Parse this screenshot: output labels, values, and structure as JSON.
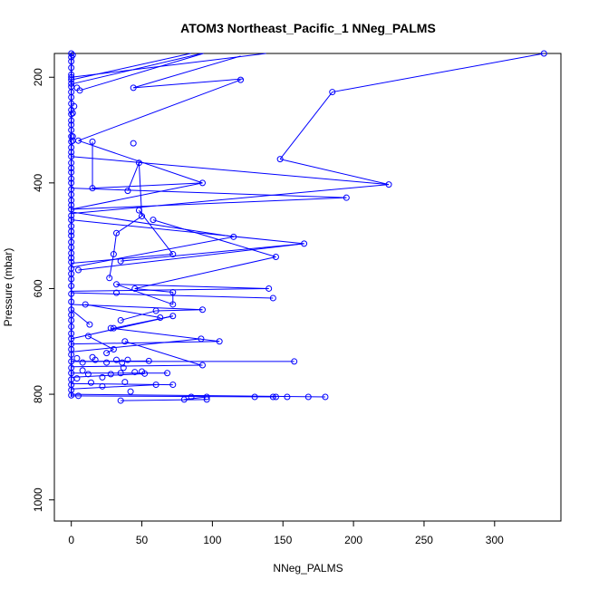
{
  "chart_data": {
    "type": "scatter",
    "title": "ATOM3 Northeast_Pacific_1 NNeg_PALMS",
    "xlabel": "NNeg_PALMS",
    "ylabel": "Pressure (mbar)",
    "xlim": [
      -12,
      347
    ],
    "ylim": [
      1040,
      155
    ],
    "y_reversed": true,
    "x_ticks": [
      0,
      50,
      100,
      150,
      200,
      250,
      300
    ],
    "y_ticks": [
      200,
      400,
      600,
      800,
      1000
    ],
    "grid": false,
    "color": "#0000ff",
    "points": [
      [
        0,
        155
      ],
      [
        1,
        158
      ],
      [
        0,
        162
      ],
      [
        0,
        170
      ],
      [
        0,
        182
      ],
      [
        0,
        195
      ],
      [
        0,
        200
      ],
      [
        0,
        205
      ],
      [
        0,
        212
      ],
      [
        0,
        218
      ],
      [
        0,
        228
      ],
      [
        0,
        238
      ],
      [
        0,
        250
      ],
      [
        0,
        262
      ],
      [
        0,
        270
      ],
      [
        0,
        282
      ],
      [
        0,
        290
      ],
      [
        0,
        300
      ],
      [
        0,
        312
      ],
      [
        0,
        322
      ],
      [
        0,
        333
      ],
      [
        0,
        342
      ],
      [
        0,
        350
      ],
      [
        0,
        362
      ],
      [
        0,
        372
      ],
      [
        0,
        380
      ],
      [
        0,
        392
      ],
      [
        0,
        400
      ],
      [
        0,
        412
      ],
      [
        0,
        422
      ],
      [
        0,
        433
      ],
      [
        0,
        442
      ],
      [
        0,
        450
      ],
      [
        0,
        462
      ],
      [
        0,
        470
      ],
      [
        0,
        482
      ],
      [
        0,
        492
      ],
      [
        0,
        500
      ],
      [
        0,
        512
      ],
      [
        0,
        522
      ],
      [
        0,
        533
      ],
      [
        0,
        542
      ],
      [
        0,
        550
      ],
      [
        0,
        562
      ],
      [
        0,
        572
      ],
      [
        0,
        582
      ],
      [
        0,
        595
      ],
      [
        0,
        610
      ],
      [
        0,
        625
      ],
      [
        0,
        640
      ],
      [
        0,
        650
      ],
      [
        0,
        660
      ],
      [
        0,
        672
      ],
      [
        0,
        685
      ],
      [
        0,
        695
      ],
      [
        0,
        705
      ],
      [
        0,
        715
      ],
      [
        0,
        725
      ],
      [
        0,
        738
      ],
      [
        0,
        750
      ],
      [
        0,
        760
      ],
      [
        0,
        772
      ],
      [
        0,
        782
      ],
      [
        0,
        792
      ],
      [
        0,
        802
      ],
      [
        6,
        225
      ],
      [
        4,
        220
      ],
      [
        5,
        320
      ],
      [
        1,
        312
      ],
      [
        1,
        320
      ],
      [
        2,
        255
      ],
      [
        1,
        268
      ],
      [
        150,
        110
      ],
      [
        180,
        95
      ],
      [
        230,
        125
      ],
      [
        335,
        155
      ],
      [
        120,
        205
      ],
      [
        185,
        228
      ],
      [
        148,
        355
      ],
      [
        225,
        403
      ],
      [
        195,
        428
      ],
      [
        44,
        220
      ],
      [
        44,
        325
      ],
      [
        15,
        322
      ],
      [
        15,
        410
      ],
      [
        48,
        362
      ],
      [
        40,
        415
      ],
      [
        93,
        400
      ],
      [
        48,
        452
      ],
      [
        50,
        463
      ],
      [
        58,
        470
      ],
      [
        115,
        502
      ],
      [
        165,
        515
      ],
      [
        72,
        535
      ],
      [
        145,
        540
      ],
      [
        32,
        495
      ],
      [
        30,
        535
      ],
      [
        35,
        548
      ],
      [
        27,
        580
      ],
      [
        5,
        565
      ],
      [
        32,
        592
      ],
      [
        140,
        600
      ],
      [
        45,
        600
      ],
      [
        72,
        607
      ],
      [
        143,
        618
      ],
      [
        32,
        608
      ],
      [
        72,
        630
      ],
      [
        10,
        630
      ],
      [
        93,
        640
      ],
      [
        60,
        642
      ],
      [
        72,
        652
      ],
      [
        63,
        655
      ],
      [
        35,
        660
      ],
      [
        13,
        668
      ],
      [
        28,
        675
      ],
      [
        30,
        675
      ],
      [
        105,
        700
      ],
      [
        92,
        695
      ],
      [
        38,
        700
      ],
      [
        12,
        690
      ],
      [
        30,
        715
      ],
      [
        25,
        722
      ],
      [
        15,
        730
      ],
      [
        4,
        732
      ],
      [
        8,
        740
      ],
      [
        17,
        735
      ],
      [
        25,
        740
      ],
      [
        40,
        735
      ],
      [
        158,
        738
      ],
      [
        93,
        745
      ],
      [
        55,
        737
      ],
      [
        32,
        735
      ],
      [
        36,
        740
      ],
      [
        37,
        750
      ],
      [
        45,
        758
      ],
      [
        50,
        757
      ],
      [
        68,
        760
      ],
      [
        52,
        761
      ],
      [
        35,
        760
      ],
      [
        28,
        762
      ],
      [
        22,
        768
      ],
      [
        12,
        762
      ],
      [
        8,
        755
      ],
      [
        4,
        770
      ],
      [
        14,
        778
      ],
      [
        38,
        777
      ],
      [
        60,
        782
      ],
      [
        72,
        782
      ],
      [
        22,
        785
      ],
      [
        42,
        795
      ],
      [
        35,
        812
      ],
      [
        5,
        803
      ],
      [
        85,
        805
      ],
      [
        96,
        805
      ],
      [
        80,
        810
      ],
      [
        96,
        810
      ],
      [
        130,
        805
      ],
      [
        143,
        805
      ],
      [
        145,
        805
      ],
      [
        153,
        805
      ],
      [
        168,
        805
      ],
      [
        180,
        805
      ]
    ],
    "segments": [
      [
        [
          0,
          205
        ],
        [
          110,
          140
        ]
      ],
      [
        [
          6,
          225
        ],
        [
          150,
          110
        ]
      ],
      [
        [
          0,
          213
        ],
        [
          180,
          100
        ]
      ],
      [
        [
          0,
          200
        ],
        [
          230,
          125
        ]
      ],
      [
        [
          44,
          220
        ],
        [
          120,
          160
        ]
      ],
      [
        [
          44,
          220
        ],
        [
          122,
          203
        ]
      ],
      [
        [
          5,
          320
        ],
        [
          120,
          205
        ]
      ],
      [
        [
          148,
          355
        ],
        [
          185,
          228
        ]
      ],
      [
        [
          185,
          228
        ],
        [
          335,
          155
        ]
      ],
      [
        [
          148,
          355
        ],
        [
          225,
          403
        ]
      ],
      [
        [
          0,
          350
        ],
        [
          225,
          403
        ]
      ],
      [
        [
          225,
          403
        ],
        [
          0,
          458
        ]
      ],
      [
        [
          195,
          428
        ],
        [
          0,
          410
        ]
      ],
      [
        [
          0,
          450
        ],
        [
          195,
          428
        ]
      ],
      [
        [
          15,
          322
        ],
        [
          15,
          410
        ]
      ],
      [
        [
          44,
          325
        ],
        [
          44,
          325
        ]
      ],
      [
        [
          48,
          362
        ],
        [
          40,
          415
        ]
      ],
      [
        [
          15,
          410
        ],
        [
          93,
          400
        ]
      ],
      [
        [
          48,
          362
        ],
        [
          50,
          463
        ]
      ],
      [
        [
          93,
          400
        ],
        [
          0,
          450
        ]
      ],
      [
        [
          5,
          320
        ],
        [
          93,
          400
        ]
      ],
      [
        [
          48,
          452
        ],
        [
          72,
          535
        ]
      ],
      [
        [
          58,
          470
        ],
        [
          145,
          540
        ]
      ],
      [
        [
          0,
          455
        ],
        [
          115,
          502
        ]
      ],
      [
        [
          50,
          463
        ],
        [
          32,
          495
        ]
      ],
      [
        [
          32,
          495
        ],
        [
          30,
          535
        ]
      ],
      [
        [
          30,
          535
        ],
        [
          27,
          580
        ]
      ],
      [
        [
          0,
          470
        ],
        [
          165,
          515
        ]
      ],
      [
        [
          165,
          515
        ],
        [
          5,
          565
        ]
      ],
      [
        [
          115,
          502
        ],
        [
          0,
          560
        ]
      ],
      [
        [
          35,
          548
        ],
        [
          165,
          515
        ]
      ],
      [
        [
          72,
          535
        ],
        [
          0,
          552
        ]
      ],
      [
        [
          145,
          540
        ],
        [
          45,
          600
        ]
      ],
      [
        [
          140,
          600
        ],
        [
          0,
          605
        ]
      ],
      [
        [
          143,
          618
        ],
        [
          0,
          608
        ]
      ],
      [
        [
          32,
          592
        ],
        [
          140,
          600
        ]
      ],
      [
        [
          32,
          592
        ],
        [
          72,
          630
        ]
      ],
      [
        [
          45,
          600
        ],
        [
          72,
          607
        ]
      ],
      [
        [
          72,
          607
        ],
        [
          72,
          630
        ]
      ],
      [
        [
          0,
          630
        ],
        [
          93,
          640
        ]
      ],
      [
        [
          93,
          640
        ],
        [
          60,
          642
        ]
      ],
      [
        [
          60,
          642
        ],
        [
          35,
          660
        ]
      ],
      [
        [
          72,
          652
        ],
        [
          0,
          695
        ]
      ],
      [
        [
          72,
          652
        ],
        [
          30,
          675
        ]
      ],
      [
        [
          63,
          655
        ],
        [
          10,
          630
        ]
      ],
      [
        [
          13,
          668
        ],
        [
          0,
          640
        ]
      ],
      [
        [
          28,
          675
        ],
        [
          105,
          700
        ]
      ],
      [
        [
          105,
          700
        ],
        [
          0,
          705
        ]
      ],
      [
        [
          92,
          695
        ],
        [
          0,
          720
        ]
      ],
      [
        [
          38,
          700
        ],
        [
          92,
          745
        ]
      ],
      [
        [
          12,
          690
        ],
        [
          30,
          715
        ]
      ],
      [
        [
          30,
          715
        ],
        [
          25,
          722
        ]
      ],
      [
        [
          158,
          738
        ],
        [
          0,
          738
        ]
      ],
      [
        [
          93,
          745
        ],
        [
          0,
          748
        ]
      ],
      [
        [
          55,
          737
        ],
        [
          0,
          738
        ]
      ],
      [
        [
          0,
          760
        ],
        [
          68,
          760
        ]
      ],
      [
        [
          0,
          768
        ],
        [
          52,
          761
        ]
      ],
      [
        [
          0,
          780
        ],
        [
          72,
          782
        ]
      ],
      [
        [
          0,
          790
        ],
        [
          60,
          782
        ]
      ],
      [
        [
          0,
          800
        ],
        [
          180,
          805
        ]
      ],
      [
        [
          0,
          803
        ],
        [
          145,
          805
        ]
      ],
      [
        [
          35,
          812
        ],
        [
          96,
          810
        ]
      ],
      [
        [
          80,
          810
        ],
        [
          96,
          805
        ]
      ]
    ]
  }
}
